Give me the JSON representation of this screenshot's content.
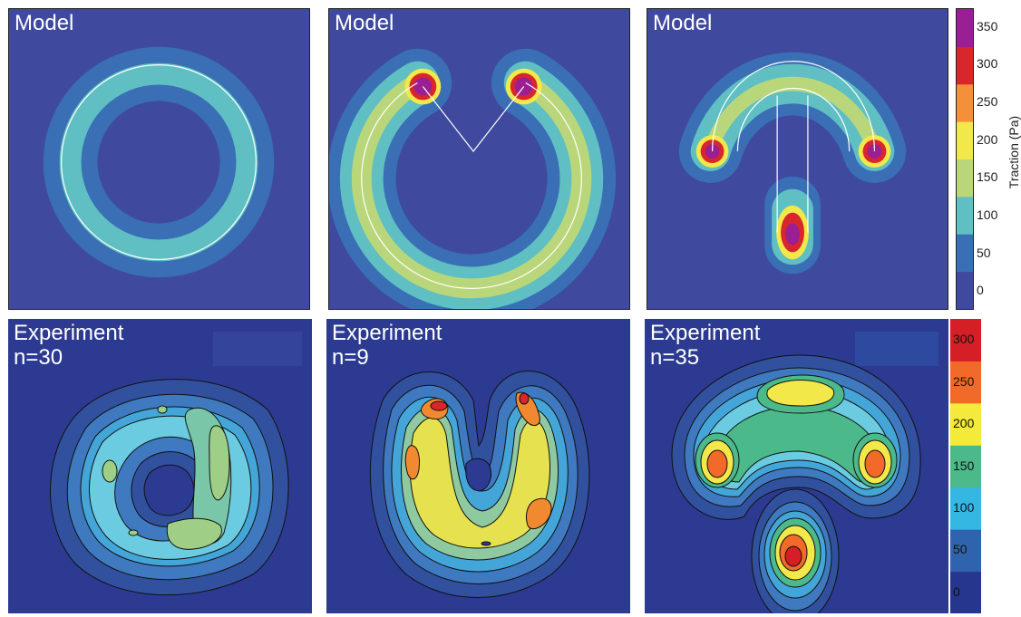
{
  "panels": {
    "model_ring": {
      "title": "Model"
    },
    "model_c": {
      "title": "Model"
    },
    "model_t": {
      "title": "Model"
    },
    "exp_ring": {
      "title": "Experiment",
      "n": "n=30"
    },
    "exp_c": {
      "title": "Experiment",
      "n": "n=9"
    },
    "exp_t": {
      "title": "Experiment",
      "n": "n=35"
    }
  },
  "chart_data": [
    {
      "type": "heatmap",
      "role": "colorbar-model",
      "label": "Traction (Pa)",
      "ticks": [
        "350",
        "300",
        "250",
        "200",
        "150",
        "100",
        "50",
        "0"
      ],
      "levels": [
        0,
        50,
        100,
        150,
        200,
        250,
        300,
        350
      ],
      "colors": [
        "#3f4a9e",
        "#3a6fb5",
        "#5fbfc2",
        "#b9d77a",
        "#f2e84a",
        "#f48f3a",
        "#d8262c",
        "#9a1e94"
      ]
    },
    {
      "type": "heatmap",
      "role": "colorbar-experiment",
      "ticks": [
        "300",
        "250",
        "200",
        "150",
        "100",
        "50",
        "0"
      ],
      "levels": [
        0,
        50,
        100,
        150,
        200,
        250,
        300
      ],
      "colors": [
        "#26368e",
        "#2f63ad",
        "#34b8e3",
        "#4cb98a",
        "#f4ea3a",
        "#f26a2a",
        "#d41f26"
      ]
    }
  ]
}
